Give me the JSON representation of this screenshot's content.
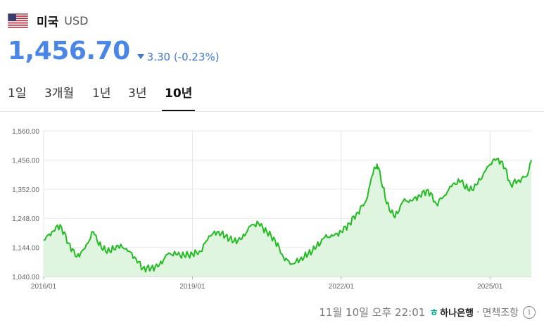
{
  "header": {
    "country": "미국",
    "currency": "USD"
  },
  "quote": {
    "price": "1,456.70",
    "change": "3.30 (-0.23%)",
    "direction": "down",
    "accent_color": "#4a86e8"
  },
  "tabs": [
    {
      "label": "1일"
    },
    {
      "label": "3개월"
    },
    {
      "label": "1년"
    },
    {
      "label": "3년"
    },
    {
      "label": "10년",
      "active": true
    }
  ],
  "footer": {
    "timestamp": "11월 10일 오후 22:01",
    "bank": "하나은행",
    "separator": "·",
    "disclaimer": "면책조항",
    "info_icon": "info-icon"
  },
  "chart_data": {
    "type": "area",
    "line_color": "#22bb22",
    "fill_color": "#dff5df",
    "y_ticks": [
      "1,560.00",
      "1,456.00",
      "1,352.00",
      "1,248.00",
      "1,144.00",
      "1,040.00"
    ],
    "ylim": [
      1040,
      1560
    ],
    "x_ticks": [
      "2016/01",
      "2019/01",
      "2022/01",
      "2025/01"
    ],
    "x": [
      "2016/01",
      "2016/03",
      "2016/05",
      "2016/07",
      "2016/09",
      "2016/11",
      "2017/01",
      "2017/03",
      "2017/05",
      "2017/07",
      "2017/09",
      "2017/11",
      "2018/01",
      "2018/03",
      "2018/05",
      "2018/07",
      "2018/09",
      "2018/11",
      "2019/01",
      "2019/03",
      "2019/05",
      "2019/07",
      "2019/09",
      "2019/11",
      "2020/01",
      "2020/03",
      "2020/05",
      "2020/07",
      "2020/09",
      "2020/11",
      "2021/01",
      "2021/03",
      "2021/05",
      "2021/07",
      "2021/09",
      "2021/11",
      "2022/01",
      "2022/03",
      "2022/05",
      "2022/07",
      "2022/09",
      "2022/10",
      "2022/12",
      "2023/02",
      "2023/04",
      "2023/06",
      "2023/08",
      "2023/10",
      "2023/12",
      "2024/02",
      "2024/04",
      "2024/06",
      "2024/08",
      "2024/10",
      "2024/12",
      "2025/02",
      "2025/04",
      "2025/06",
      "2025/08",
      "2025/10",
      "2025/11"
    ],
    "values": [
      1170,
      1200,
      1225,
      1160,
      1110,
      1140,
      1200,
      1140,
      1130,
      1150,
      1140,
      1110,
      1070,
      1070,
      1080,
      1120,
      1120,
      1115,
      1120,
      1130,
      1185,
      1200,
      1185,
      1165,
      1175,
      1220,
      1230,
      1200,
      1170,
      1110,
      1085,
      1100,
      1120,
      1145,
      1180,
      1185,
      1200,
      1230,
      1270,
      1310,
      1430,
      1430,
      1300,
      1250,
      1310,
      1310,
      1330,
      1350,
      1300,
      1330,
      1370,
      1380,
      1345,
      1370,
      1420,
      1460,
      1450,
      1370,
      1385,
      1400,
      1456
    ]
  }
}
